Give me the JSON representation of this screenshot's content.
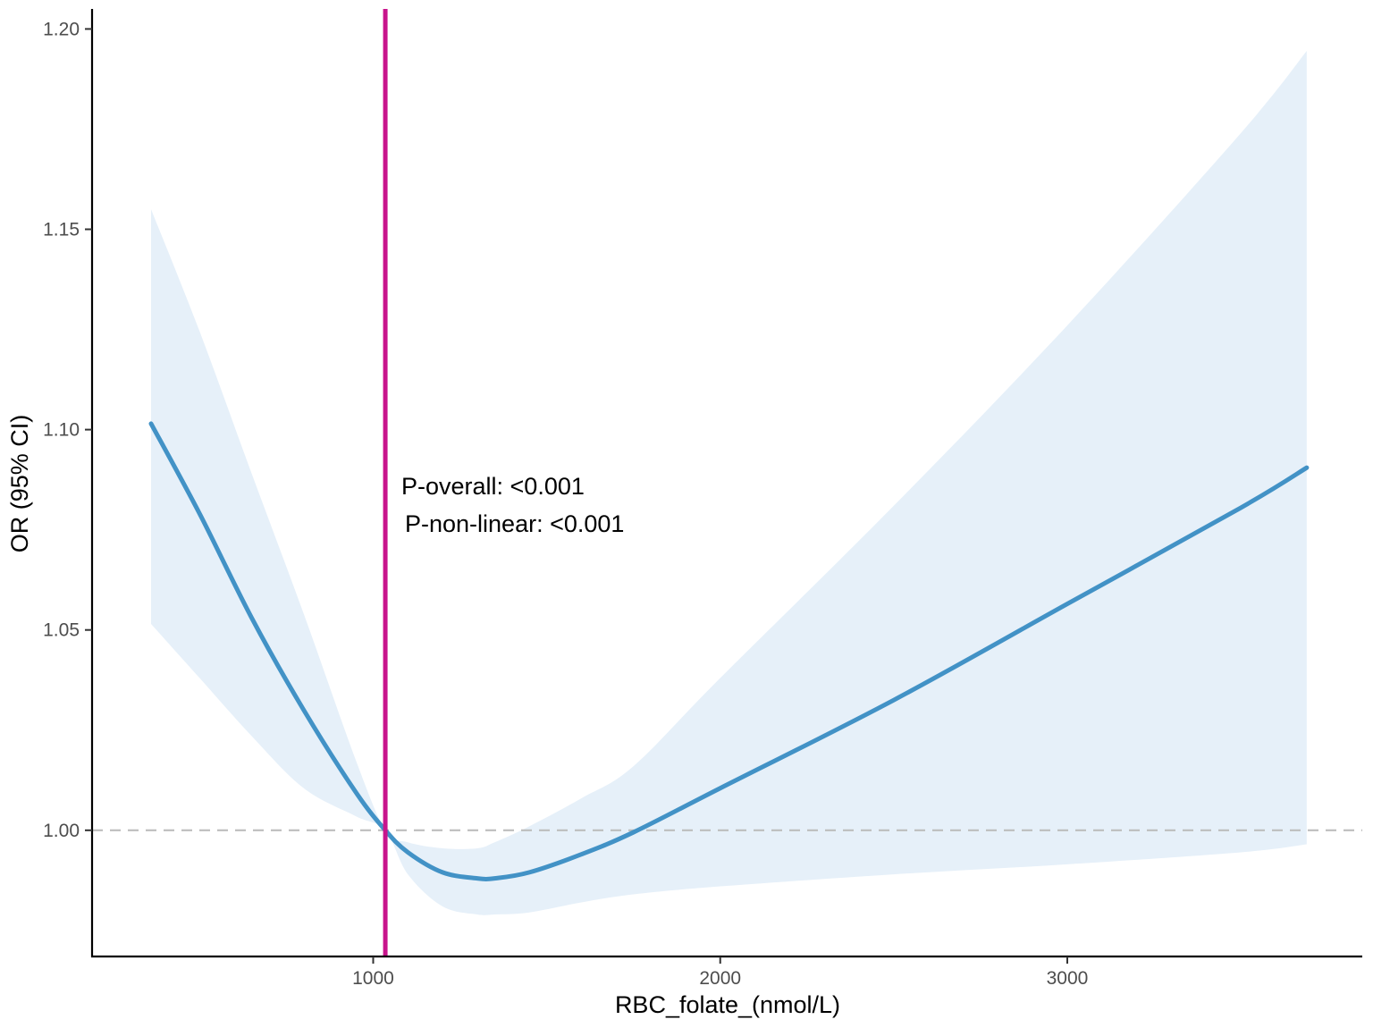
{
  "chart_data": {
    "type": "line",
    "title": "",
    "xlabel": "RBC_folate_(nmol/L)",
    "ylabel": "OR (95% CI)",
    "xlim": [
      190,
      3850
    ],
    "ylim": [
      0.9685,
      1.205
    ],
    "x_ticks": [
      1000,
      2000,
      3000
    ],
    "x_tick_labels": [
      "1000",
      "2000",
      "3000"
    ],
    "y_ticks": [
      1.0,
      1.05,
      1.1,
      1.15,
      1.2
    ],
    "y_tick_labels": [
      "1.00",
      "1.05",
      "1.10",
      "1.15",
      "1.20"
    ],
    "grid": false,
    "reference_line": {
      "y": 1.0,
      "style": "dashed",
      "color": "#bdbdbd"
    },
    "cutpoint_line": {
      "x": 1035,
      "color": "#c8148c"
    },
    "annotations": [
      "P-overall: <0.001",
      "P-non-linear: <0.001"
    ],
    "series": [
      {
        "x": [
          360,
          500,
          650,
          800,
          950,
          1035,
          1100,
          1200,
          1300,
          1350,
          1450,
          1600,
          1750,
          2000,
          2500,
          3000,
          3500,
          3690
        ],
        "y": [
          1.1015,
          1.079,
          1.053,
          1.03,
          1.0095,
          1.0,
          0.9945,
          0.9895,
          0.988,
          0.988,
          0.9895,
          0.994,
          0.9995,
          1.0105,
          1.0325,
          1.0565,
          1.0805,
          1.0905
        ],
        "ci_lower": [
          1.0515,
          1.038,
          1.0235,
          1.0105,
          1.0035,
          1.0,
          0.989,
          0.981,
          0.979,
          0.979,
          0.9795,
          0.982,
          0.984,
          0.986,
          0.989,
          0.9915,
          0.9945,
          0.9965
        ],
        "ci_upper": [
          1.155,
          1.1245,
          1.089,
          1.054,
          1.0175,
          1.0,
          0.997,
          0.9955,
          0.9955,
          0.997,
          1.001,
          1.008,
          1.016,
          1.038,
          1.081,
          1.126,
          1.174,
          1.1945
        ],
        "color": "#4292c6",
        "band_color": "#e6f0f9"
      }
    ]
  }
}
